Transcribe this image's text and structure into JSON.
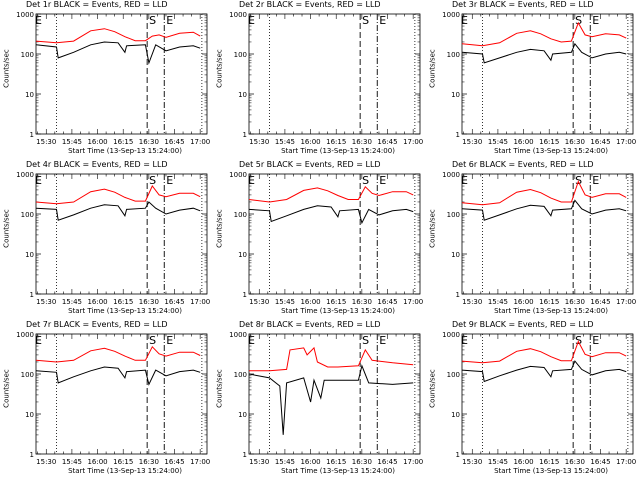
{
  "title_template": "BLACK = Events, RED = LLD",
  "chart_data": [
    {
      "type": "line",
      "title": "Det 1r BLACK = Events, RED = LLD",
      "xlabel": "Start Time (13-Sep-13 15:24:00)",
      "ylabel": "Counts/sec",
      "yscale": "log",
      "ylim": [
        1,
        1000
      ],
      "xlim": [
        "15:24",
        "17:04"
      ],
      "xticks": [
        "15:30",
        "15:45",
        "16:00",
        "16:15",
        "16:30",
        "16:45",
        "17:00"
      ],
      "yticks": [
        "1",
        "10",
        "100",
        "1000"
      ],
      "dotted_lines": [
        "15:36",
        "17:01"
      ],
      "markers": [
        {
          "label": "S",
          "time": "16:29"
        },
        {
          "label": "E",
          "time": "16:39"
        }
      ],
      "series": [
        {
          "color": "#ff0000",
          "x": [
            "15:24",
            "15:36",
            "15:46",
            "15:56",
            "16:04",
            "16:10",
            "16:16",
            "16:22",
            "16:28",
            "16:32",
            "16:36",
            "16:40",
            "16:48",
            "16:56",
            "17:00"
          ],
          "values": [
            210,
            190,
            210,
            380,
            430,
            360,
            270,
            215,
            215,
            280,
            300,
            260,
            330,
            350,
            280
          ]
        },
        {
          "color": "#000000",
          "x": [
            "15:24",
            "15:36",
            "15:37",
            "15:46",
            "15:56",
            "16:04",
            "16:12",
            "16:16",
            "16:17",
            "16:28",
            "16:30",
            "16:34",
            "16:40",
            "16:48",
            "16:56",
            "17:00"
          ],
          "values": [
            170,
            150,
            80,
            110,
            170,
            200,
            190,
            110,
            160,
            170,
            60,
            170,
            120,
            150,
            160,
            140
          ]
        }
      ]
    },
    {
      "type": "line",
      "title": "Det 2r BLACK = Events, RED = LLD",
      "xlabel": "Start Time (13-Sep-13 15:24:00)",
      "ylabel": "Counts/sec",
      "yscale": "log",
      "ylim": [
        1,
        1000
      ],
      "xlim": [
        "15:24",
        "17:04"
      ],
      "xticks": [
        "15:30",
        "15:45",
        "16:00",
        "16:15",
        "16:30",
        "16:45",
        "17:00"
      ],
      "yticks": [
        "1",
        "10",
        "100",
        "1000"
      ],
      "dotted_lines": [
        "15:36",
        "17:01"
      ],
      "markers": [
        {
          "label": "S",
          "time": "16:29"
        },
        {
          "label": "E",
          "time": "16:39"
        }
      ],
      "series": []
    },
    {
      "type": "line",
      "title": "Det 3r BLACK = Events, RED = LLD",
      "xlabel": "Start Time (13-Sep-13 15:24:00)",
      "ylabel": "Counts/sec",
      "yscale": "log",
      "ylim": [
        1,
        1000
      ],
      "xlim": [
        "15:24",
        "17:04"
      ],
      "xticks": [
        "15:30",
        "15:45",
        "16:00",
        "16:15",
        "16:30",
        "16:45",
        "17:00"
      ],
      "yticks": [
        "1",
        "10",
        "100",
        "1000"
      ],
      "dotted_lines": [
        "15:36",
        "17:01"
      ],
      "markers": [
        {
          "label": "S",
          "time": "16:29"
        },
        {
          "label": "E",
          "time": "16:39"
        }
      ],
      "series": [
        {
          "color": "#ff0000",
          "x": [
            "15:24",
            "15:36",
            "15:46",
            "15:56",
            "16:04",
            "16:10",
            "16:16",
            "16:22",
            "16:28",
            "16:32",
            "16:36",
            "16:40",
            "16:48",
            "16:56",
            "17:00"
          ],
          "values": [
            180,
            160,
            190,
            330,
            380,
            320,
            240,
            200,
            210,
            600,
            300,
            270,
            320,
            300,
            250
          ]
        },
        {
          "color": "#000000",
          "x": [
            "15:24",
            "15:36",
            "15:37",
            "15:46",
            "15:56",
            "16:04",
            "16:12",
            "16:16",
            "16:17",
            "16:28",
            "16:30",
            "16:34",
            "16:40",
            "16:48",
            "16:56",
            "17:00"
          ],
          "values": [
            110,
            100,
            60,
            80,
            110,
            130,
            120,
            70,
            100,
            110,
            180,
            110,
            80,
            100,
            110,
            100
          ]
        }
      ]
    },
    {
      "type": "line",
      "title": "Det 4r BLACK = Events, RED = LLD",
      "xlabel": "Start Time (13-Sep-13 15:24:00)",
      "ylabel": "Counts/sec",
      "yscale": "log",
      "ylim": [
        1,
        1000
      ],
      "xlim": [
        "15:24",
        "17:04"
      ],
      "xticks": [
        "15:30",
        "15:45",
        "16:00",
        "16:15",
        "16:30",
        "16:45",
        "17:00"
      ],
      "yticks": [
        "1",
        "10",
        "100",
        "1000"
      ],
      "dotted_lines": [
        "15:36",
        "17:01"
      ],
      "markers": [
        {
          "label": "S",
          "time": "16:29"
        },
        {
          "label": "E",
          "time": "16:39"
        }
      ],
      "series": [
        {
          "color": "#ff0000",
          "x": [
            "15:24",
            "15:36",
            "15:46",
            "15:56",
            "16:04",
            "16:10",
            "16:16",
            "16:22",
            "16:28",
            "16:32",
            "16:36",
            "16:40",
            "16:48",
            "16:56",
            "17:00"
          ],
          "values": [
            200,
            180,
            200,
            360,
            420,
            350,
            260,
            210,
            210,
            500,
            300,
            270,
            330,
            330,
            270
          ]
        },
        {
          "color": "#000000",
          "x": [
            "15:24",
            "15:36",
            "15:37",
            "15:46",
            "15:56",
            "16:04",
            "16:12",
            "16:16",
            "16:17",
            "16:28",
            "16:30",
            "16:34",
            "16:40",
            "16:48",
            "16:56",
            "17:00"
          ],
          "values": [
            140,
            130,
            70,
            95,
            140,
            170,
            160,
            90,
            130,
            140,
            200,
            140,
            100,
            125,
            140,
            120
          ]
        }
      ]
    },
    {
      "type": "line",
      "title": "Det 5r BLACK = Events, RED = LLD",
      "xlabel": "Start Time (13-Sep-13 15:24:00)",
      "ylabel": "Counts/sec",
      "yscale": "log",
      "ylim": [
        1,
        1000
      ],
      "xlim": [
        "15:24",
        "17:04"
      ],
      "xticks": [
        "15:30",
        "15:45",
        "16:00",
        "16:15",
        "16:30",
        "16:45",
        "17:00"
      ],
      "yticks": [
        "1",
        "10",
        "100",
        "1000"
      ],
      "dotted_lines": [
        "15:36",
        "17:01"
      ],
      "markers": [
        {
          "label": "S",
          "time": "16:29"
        },
        {
          "label": "E",
          "time": "16:39"
        }
      ],
      "series": [
        {
          "color": "#ff0000",
          "x": [
            "15:24",
            "15:36",
            "15:46",
            "15:56",
            "16:04",
            "16:10",
            "16:16",
            "16:22",
            "16:28",
            "16:32",
            "16:36",
            "16:40",
            "16:48",
            "16:56",
            "17:00"
          ],
          "values": [
            230,
            200,
            230,
            390,
            450,
            380,
            290,
            230,
            230,
            480,
            330,
            290,
            360,
            360,
            300
          ]
        },
        {
          "color": "#000000",
          "x": [
            "15:24",
            "15:36",
            "15:37",
            "15:46",
            "15:56",
            "16:04",
            "16:12",
            "16:16",
            "16:17",
            "16:28",
            "16:30",
            "16:34",
            "16:40",
            "16:48",
            "16:56",
            "17:00"
          ],
          "values": [
            130,
            120,
            65,
            90,
            130,
            160,
            150,
            85,
            120,
            130,
            60,
            130,
            95,
            120,
            130,
            115
          ]
        }
      ]
    },
    {
      "type": "line",
      "title": "Det 6r BLACK = Events, RED = LLD",
      "xlabel": "Start Time (13-Sep-13 15:24:00)",
      "ylabel": "Counts/sec",
      "yscale": "log",
      "ylim": [
        1,
        1000
      ],
      "xlim": [
        "15:24",
        "17:04"
      ],
      "xticks": [
        "15:30",
        "15:45",
        "16:00",
        "16:15",
        "16:30",
        "16:45",
        "17:00"
      ],
      "yticks": [
        "1",
        "10",
        "100",
        "1000"
      ],
      "dotted_lines": [
        "15:36",
        "17:01"
      ],
      "markers": [
        {
          "label": "S",
          "time": "16:29"
        },
        {
          "label": "E",
          "time": "16:39"
        }
      ],
      "series": [
        {
          "color": "#ff0000",
          "x": [
            "15:24",
            "15:36",
            "15:46",
            "15:56",
            "16:04",
            "16:10",
            "16:16",
            "16:22",
            "16:28",
            "16:32",
            "16:36",
            "16:40",
            "16:48",
            "16:56",
            "17:00"
          ],
          "values": [
            190,
            170,
            190,
            350,
            410,
            340,
            250,
            200,
            200,
            650,
            300,
            260,
            320,
            320,
            260
          ]
        },
        {
          "color": "#000000",
          "x": [
            "15:24",
            "15:36",
            "15:37",
            "15:46",
            "15:56",
            "16:04",
            "16:12",
            "16:16",
            "16:17",
            "16:28",
            "16:30",
            "16:34",
            "16:40",
            "16:48",
            "16:56",
            "17:00"
          ],
          "values": [
            135,
            125,
            70,
            95,
            135,
            165,
            155,
            90,
            125,
            135,
            220,
            135,
            100,
            125,
            135,
            120
          ]
        }
      ]
    },
    {
      "type": "line",
      "title": "Det 7r BLACK = Events, RED = LLD",
      "xlabel": "Start Time (13-Sep-13 15:24:00)",
      "ylabel": "Counts/sec",
      "yscale": "log",
      "ylim": [
        1,
        1000
      ],
      "xlim": [
        "15:24",
        "17:04"
      ],
      "xticks": [
        "15:30",
        "15:45",
        "16:00",
        "16:15",
        "16:30",
        "16:45",
        "17:00"
      ],
      "yticks": [
        "1",
        "10",
        "100",
        "1000"
      ],
      "dotted_lines": [
        "15:36",
        "17:01"
      ],
      "markers": [
        {
          "label": "S",
          "time": "16:29"
        },
        {
          "label": "E",
          "time": "16:39"
        }
      ],
      "series": [
        {
          "color": "#ff0000",
          "x": [
            "15:24",
            "15:36",
            "15:46",
            "15:56",
            "16:04",
            "16:10",
            "16:16",
            "16:22",
            "16:28",
            "16:32",
            "16:36",
            "16:40",
            "16:48",
            "16:56",
            "17:00"
          ],
          "values": [
            220,
            200,
            220,
            380,
            440,
            370,
            280,
            220,
            220,
            480,
            320,
            280,
            350,
            350,
            290
          ]
        },
        {
          "color": "#000000",
          "x": [
            "15:24",
            "15:36",
            "15:37",
            "15:46",
            "15:56",
            "16:04",
            "16:12",
            "16:16",
            "16:17",
            "16:28",
            "16:30",
            "16:34",
            "16:40",
            "16:48",
            "16:56",
            "17:00"
          ],
          "values": [
            120,
            110,
            60,
            85,
            120,
            150,
            140,
            80,
            115,
            125,
            55,
            125,
            90,
            115,
            125,
            110
          ]
        }
      ]
    },
    {
      "type": "line",
      "title": "Det 8r BLACK = Events, RED = LLD",
      "xlabel": "Start Time (13-Sep-13 15:24:00)",
      "ylabel": "Counts/sec",
      "yscale": "log",
      "ylim": [
        1,
        1000
      ],
      "xlim": [
        "15:24",
        "17:04"
      ],
      "xticks": [
        "15:30",
        "15:45",
        "16:00",
        "16:15",
        "16:30",
        "16:45",
        "17:00"
      ],
      "yticks": [
        "1",
        "10",
        "100",
        "1000"
      ],
      "dotted_lines": [
        "15:36",
        "17:01"
      ],
      "markers": [
        {
          "label": "S",
          "time": "16:29"
        },
        {
          "label": "E",
          "time": "16:39"
        }
      ],
      "series": [
        {
          "color": "#ff0000",
          "x": [
            "15:24",
            "15:36",
            "15:46",
            "15:48",
            "15:56",
            "15:58",
            "16:02",
            "16:04",
            "16:10",
            "16:16",
            "16:28",
            "16:32",
            "16:36",
            "16:48",
            "17:00"
          ],
          "values": [
            120,
            120,
            130,
            400,
            450,
            300,
            450,
            200,
            150,
            150,
            160,
            400,
            220,
            190,
            170
          ]
        },
        {
          "color": "#000000",
          "x": [
            "15:24",
            "15:36",
            "15:42",
            "15:44",
            "15:46",
            "15:56",
            "16:00",
            "16:02",
            "16:06",
            "16:08",
            "16:16",
            "16:28",
            "16:30",
            "16:34",
            "16:48",
            "17:00"
          ],
          "values": [
            100,
            80,
            50,
            3,
            60,
            80,
            20,
            70,
            25,
            70,
            70,
            70,
            160,
            60,
            55,
            60
          ]
        }
      ]
    },
    {
      "type": "line",
      "title": "Det 9r BLACK = Events, RED = LLD",
      "xlabel": "Start Time (13-Sep-13 15:24:00)",
      "ylabel": "Counts/sec",
      "yscale": "log",
      "ylim": [
        1,
        1000
      ],
      "xlim": [
        "15:24",
        "17:04"
      ],
      "xticks": [
        "15:30",
        "15:45",
        "16:00",
        "16:15",
        "16:30",
        "16:45",
        "17:00"
      ],
      "yticks": [
        "1",
        "10",
        "100",
        "1000"
      ],
      "dotted_lines": [
        "15:36",
        "17:01"
      ],
      "markers": [
        {
          "label": "S",
          "time": "16:29"
        },
        {
          "label": "E",
          "time": "16:39"
        }
      ],
      "series": [
        {
          "color": "#ff0000",
          "x": [
            "15:24",
            "15:36",
            "15:46",
            "15:56",
            "16:04",
            "16:10",
            "16:16",
            "16:22",
            "16:28",
            "16:32",
            "16:36",
            "16:40",
            "16:48",
            "16:56",
            "17:00"
          ],
          "values": [
            210,
            190,
            210,
            370,
            430,
            360,
            270,
            215,
            215,
            650,
            310,
            270,
            340,
            340,
            280
          ]
        },
        {
          "color": "#000000",
          "x": [
            "15:24",
            "15:36",
            "15:37",
            "15:46",
            "15:56",
            "16:04",
            "16:12",
            "16:16",
            "16:17",
            "16:28",
            "16:30",
            "16:34",
            "16:40",
            "16:48",
            "16:56",
            "17:00"
          ],
          "values": [
            125,
            115,
            65,
            90,
            125,
            155,
            145,
            85,
            120,
            130,
            210,
            130,
            95,
            120,
            130,
            115
          ]
        }
      ]
    }
  ]
}
